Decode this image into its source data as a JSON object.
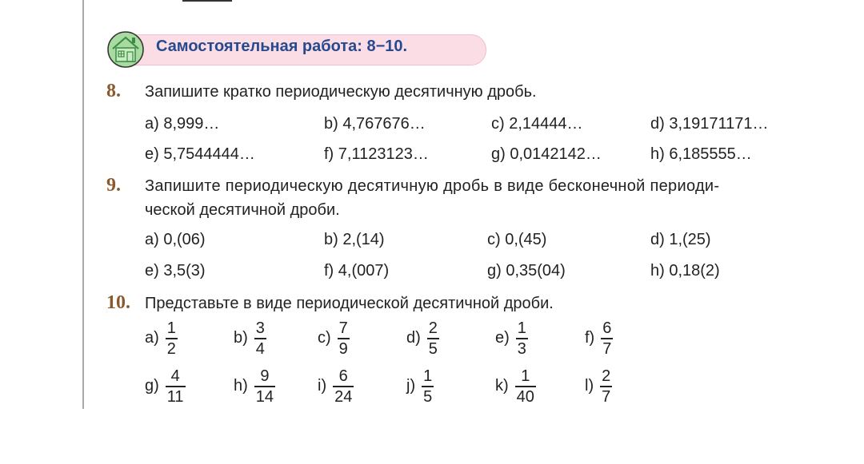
{
  "header": {
    "title": "Самостоятельная работа: 8−10.",
    "icon": "house-icon",
    "colors": {
      "pill": "#fbdde6",
      "title": "#274a8f",
      "number": "#8a5a2e"
    }
  },
  "tasks": [
    {
      "number": "8.",
      "text": "Запишите кратко периодическую десятичную дробь.",
      "items": [
        "a) 8,999…",
        "b) 4,767676…",
        "c) 2,14444…",
        "d) 3,19171171…",
        "e) 5,7544444…",
        "f) 7,1123123…",
        "g) 0,0142142…",
        "h) 6,185555…"
      ]
    },
    {
      "number": "9.",
      "text_line1": "Запишите периодическую десятичную дробь в виде бесконечной периоди-",
      "text_line2": "ческой десятичной дроби.",
      "items": [
        "a) 0,(06)",
        "b) 2,(14)",
        "c) 0,(45)",
        "d) 1,(25)",
        "e) 3,5(3)",
        "f) 4,(007)",
        "g) 0,35(04)",
        "h) 0,18(2)"
      ]
    },
    {
      "number": "10.",
      "text": "Представьте в виде периодической десятичной дроби.",
      "items": [
        {
          "label": "a)",
          "num": "1",
          "den": "2"
        },
        {
          "label": "b)",
          "num": "3",
          "den": "4"
        },
        {
          "label": "c)",
          "num": "7",
          "den": "9"
        },
        {
          "label": "d)",
          "num": "2",
          "den": "5"
        },
        {
          "label": "e)",
          "num": "1",
          "den": "3"
        },
        {
          "label": "f)",
          "num": "6",
          "den": "7"
        },
        {
          "label": "g)",
          "num": "4",
          "den": "11"
        },
        {
          "label": "h)",
          "num": "9",
          "den": "14"
        },
        {
          "label": "i)",
          "num": "6",
          "den": "24"
        },
        {
          "label": "j)",
          "num": "1",
          "den": "5"
        },
        {
          "label": "k)",
          "num": "1",
          "den": "40"
        },
        {
          "label": "l)",
          "num": "2",
          "den": "7"
        }
      ]
    }
  ]
}
